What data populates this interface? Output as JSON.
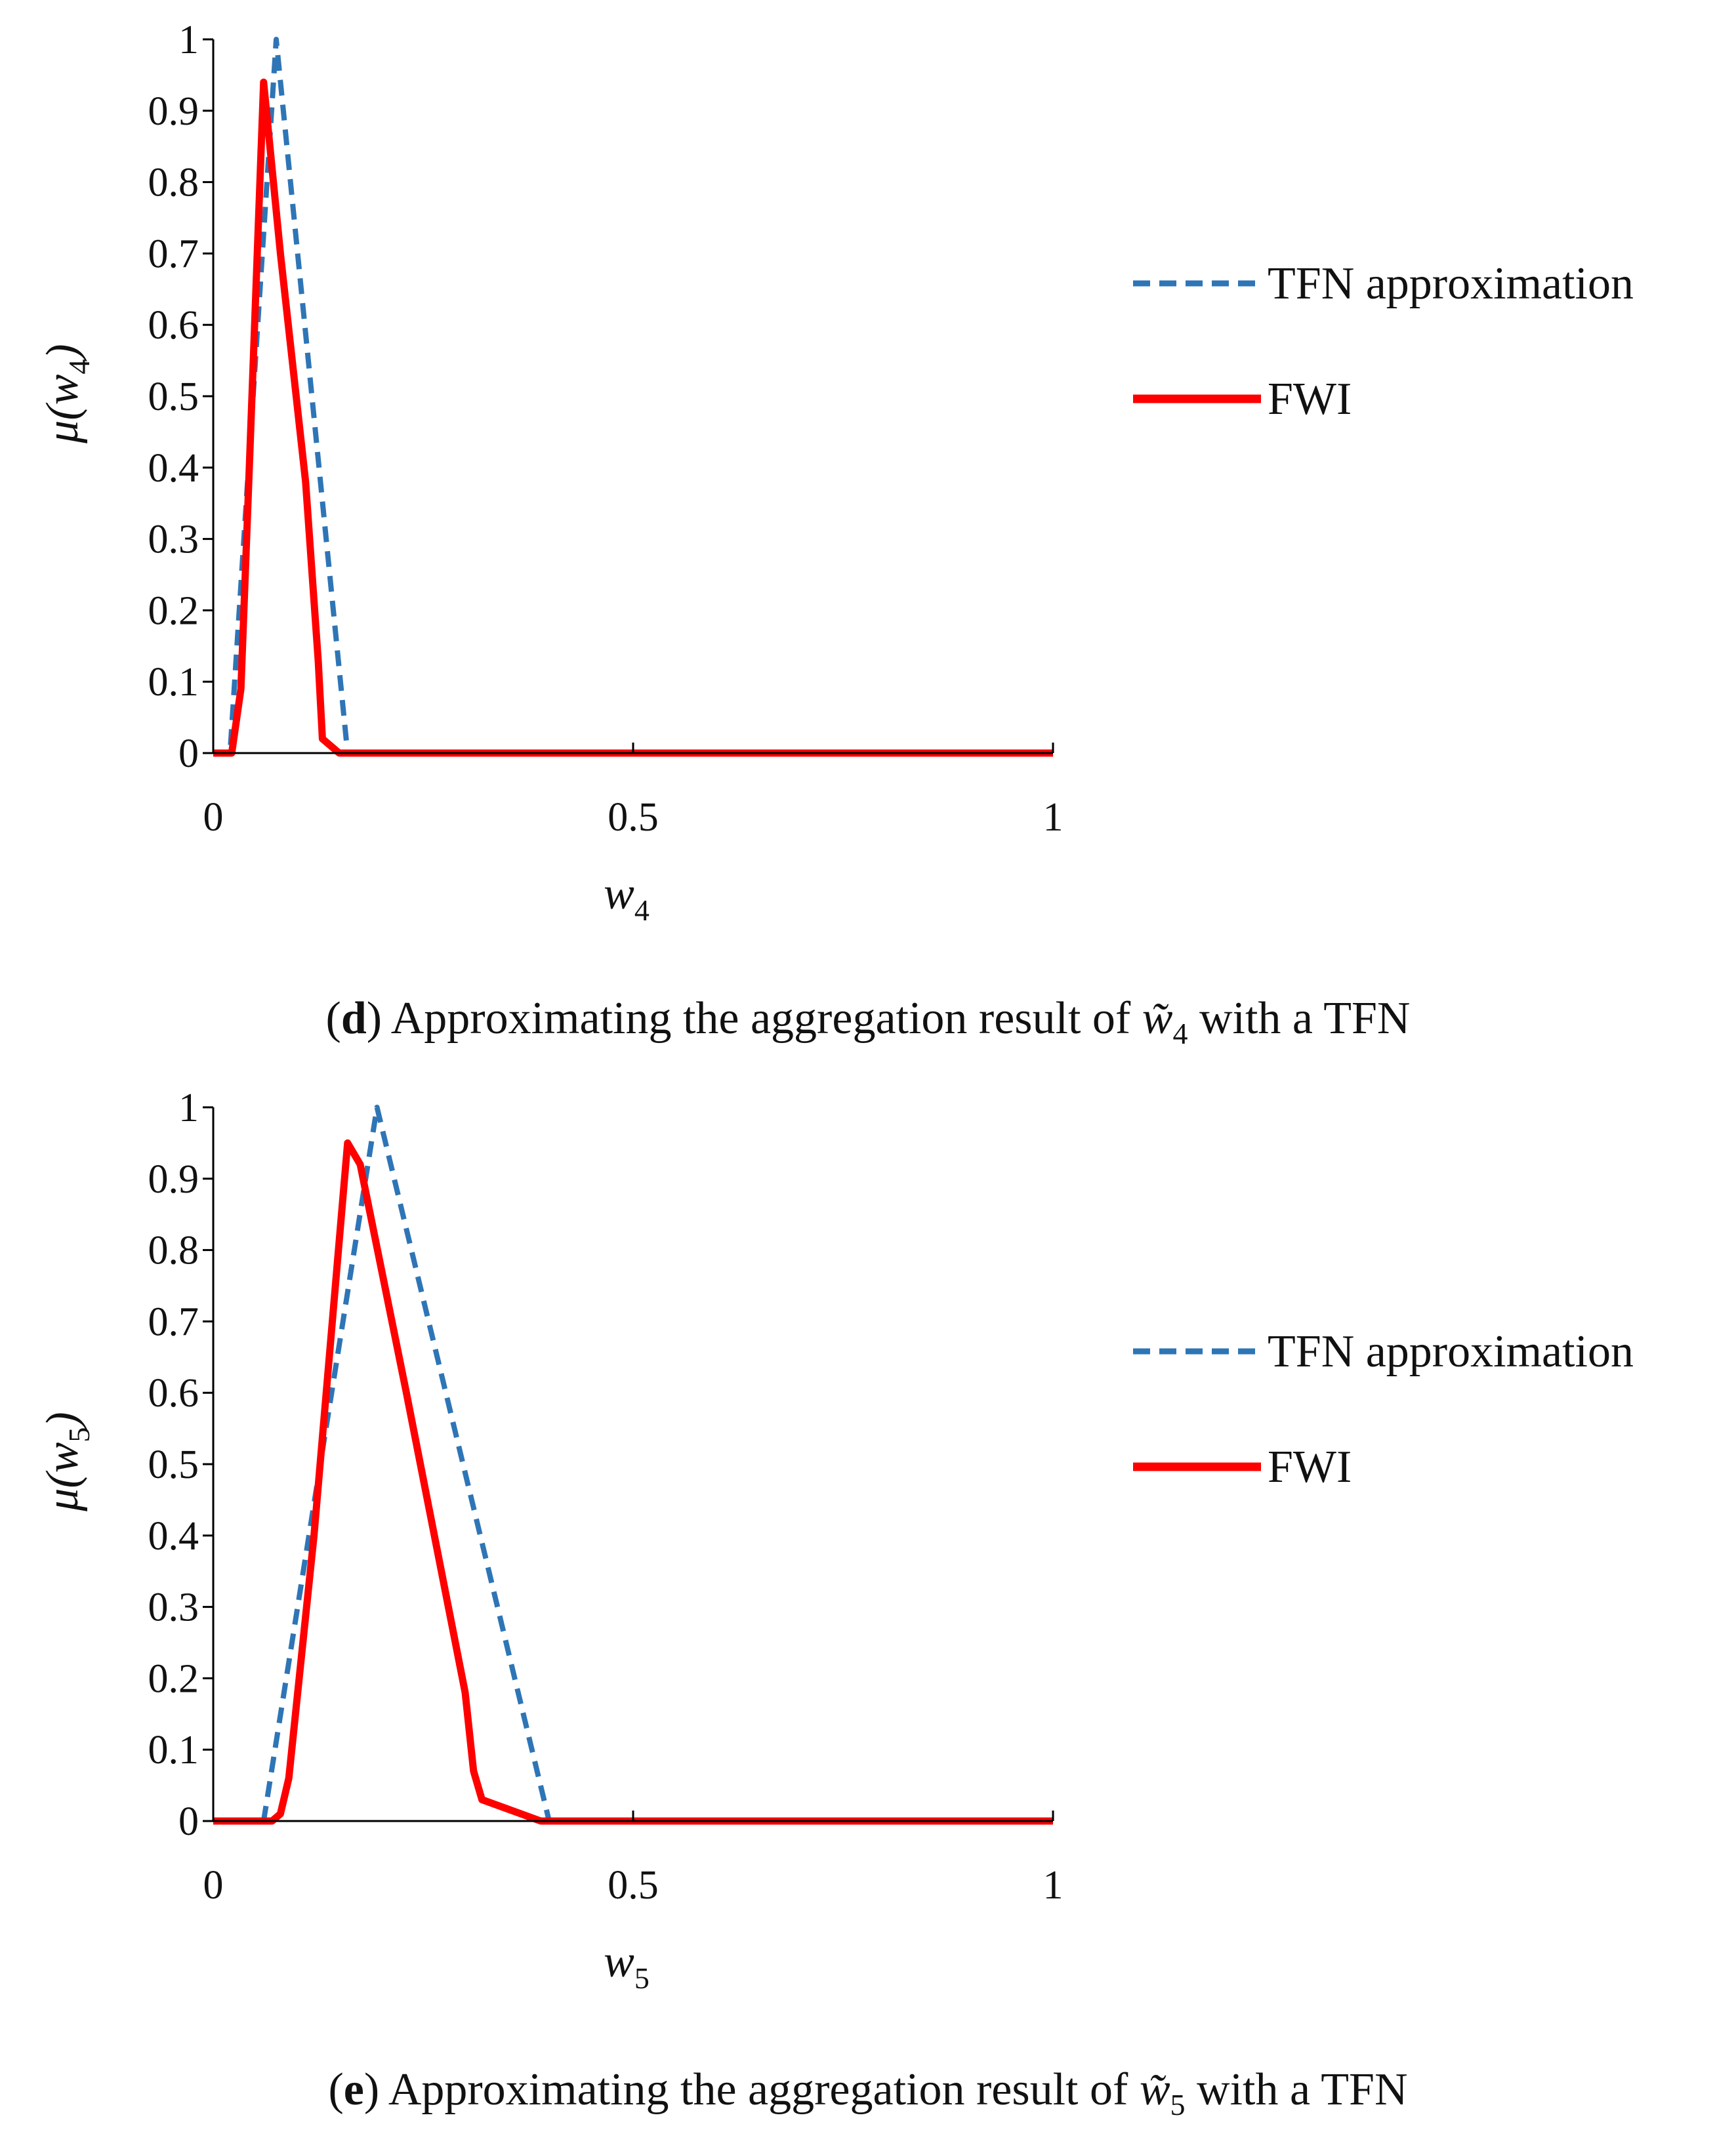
{
  "chart_data": [
    {
      "type": "line",
      "panel": "d",
      "caption": {
        "letter": "d",
        "text_before": "Approximating the aggregation result of",
        "symbol": "w̃",
        "subscript": "4",
        "text_after": "with a TFN"
      },
      "xlabel": {
        "symbol": "w",
        "subscript": "4"
      },
      "ylabel": {
        "symbol": "μ(w",
        "subscript": "4",
        "close": ")"
      },
      "xlim": [
        0,
        1
      ],
      "ylim": [
        0,
        1
      ],
      "xticks": [
        "0",
        "0.5",
        "1"
      ],
      "yticks": [
        "0",
        "0.1",
        "0.2",
        "0.3",
        "0.4",
        "0.5",
        "0.6",
        "0.7",
        "0.8",
        "0.9",
        "1"
      ],
      "legend_position": "right",
      "series": [
        {
          "name": "TFN approximation",
          "style": "dashed",
          "color": "#2e75b6",
          "points": [
            [
              0,
              0
            ],
            [
              0.02,
              0
            ],
            [
              0.075,
              1
            ],
            [
              0.16,
              0
            ],
            [
              1,
              0
            ]
          ]
        },
        {
          "name": "FWI",
          "style": "solid",
          "color": "#ff0000",
          "points": [
            [
              0,
              0
            ],
            [
              0.022,
              0
            ],
            [
              0.033,
              0.09
            ],
            [
              0.043,
              0.4
            ],
            [
              0.06,
              0.94
            ],
            [
              0.08,
              0.7
            ],
            [
              0.11,
              0.38
            ],
            [
              0.125,
              0.13
            ],
            [
              0.13,
              0.02
            ],
            [
              0.15,
              0
            ],
            [
              1,
              0
            ]
          ]
        }
      ]
    },
    {
      "type": "line",
      "panel": "e",
      "caption": {
        "letter": "e",
        "text_before": "Approximating the aggregation result of",
        "symbol": "w̃",
        "subscript": "5",
        "text_after": "with a TFN"
      },
      "xlabel": {
        "symbol": "w",
        "subscript": "5"
      },
      "ylabel": {
        "symbol": "μ(w",
        "subscript": "5",
        "close": ")"
      },
      "xlim": [
        0,
        1
      ],
      "ylim": [
        0,
        1
      ],
      "xticks": [
        "0",
        "0.5",
        "1"
      ],
      "yticks": [
        "0",
        "0.1",
        "0.2",
        "0.3",
        "0.4",
        "0.5",
        "0.6",
        "0.7",
        "0.8",
        "0.9",
        "1"
      ],
      "legend_position": "right",
      "series": [
        {
          "name": "TFN approximation",
          "style": "dashed",
          "color": "#2e75b6",
          "points": [
            [
              0,
              0
            ],
            [
              0.06,
              0
            ],
            [
              0.195,
              1
            ],
            [
              0.4,
              0
            ],
            [
              1,
              0
            ]
          ]
        },
        {
          "name": "FWI",
          "style": "solid",
          "color": "#ff0000",
          "points": [
            [
              0,
              0
            ],
            [
              0.07,
              0
            ],
            [
              0.08,
              0.01
            ],
            [
              0.09,
              0.06
            ],
            [
              0.12,
              0.4
            ],
            [
              0.16,
              0.95
            ],
            [
              0.175,
              0.92
            ],
            [
              0.23,
              0.6
            ],
            [
              0.3,
              0.18
            ],
            [
              0.31,
              0.07
            ],
            [
              0.32,
              0.03
            ],
            [
              0.39,
              0
            ],
            [
              1,
              0
            ]
          ]
        }
      ]
    }
  ]
}
